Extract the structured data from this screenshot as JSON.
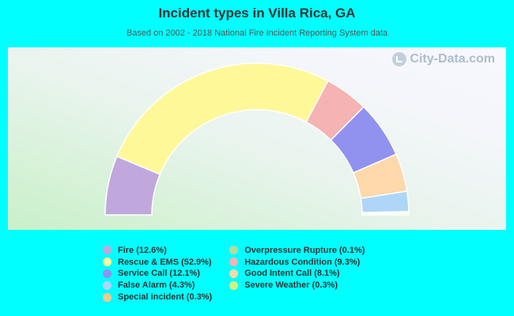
{
  "chart_data": {
    "type": "pie",
    "variant": "half-donut",
    "title": "Incident types in Villa Rica, GA",
    "subtitle": "Based on 2002 - 2018 National Fire Incident Reporting System data",
    "watermark": "City-Data.com",
    "slices": [
      {
        "label": "Fire (12.6%)",
        "value": 12.6,
        "color": "#c0a8dc"
      },
      {
        "label": "Rescue & EMS (52.9%)",
        "value": 52.9,
        "color": "#fff899"
      },
      {
        "label": "Service Call (12.1%)",
        "value": 12.1,
        "color": "#9191f0"
      },
      {
        "label": "False Alarm (4.3%)",
        "value": 4.3,
        "color": "#aed6f8"
      },
      {
        "label": "Special incident (0.3%)",
        "value": 0.3,
        "color": "#f6c98a"
      },
      {
        "label": "Overpressure Rupture (0.1%)",
        "value": 0.1,
        "color": "#b8d8a0"
      },
      {
        "label": "Hazardous Condition (9.3%)",
        "value": 9.3,
        "color": "#f5b3b3"
      },
      {
        "label": "Good Intent Call (8.1%)",
        "value": 8.1,
        "color": "#fdd8aa"
      },
      {
        "label": "Severe Weather (0.3%)",
        "value": 0.3,
        "color": "#d4f080"
      }
    ],
    "draw_order": [
      0,
      1,
      6,
      2,
      7,
      3,
      4,
      5,
      8
    ],
    "legend_columns": [
      [
        0,
        1,
        2,
        3,
        4
      ],
      [
        5,
        6,
        7,
        8
      ]
    ],
    "legend_position": "bottom"
  }
}
